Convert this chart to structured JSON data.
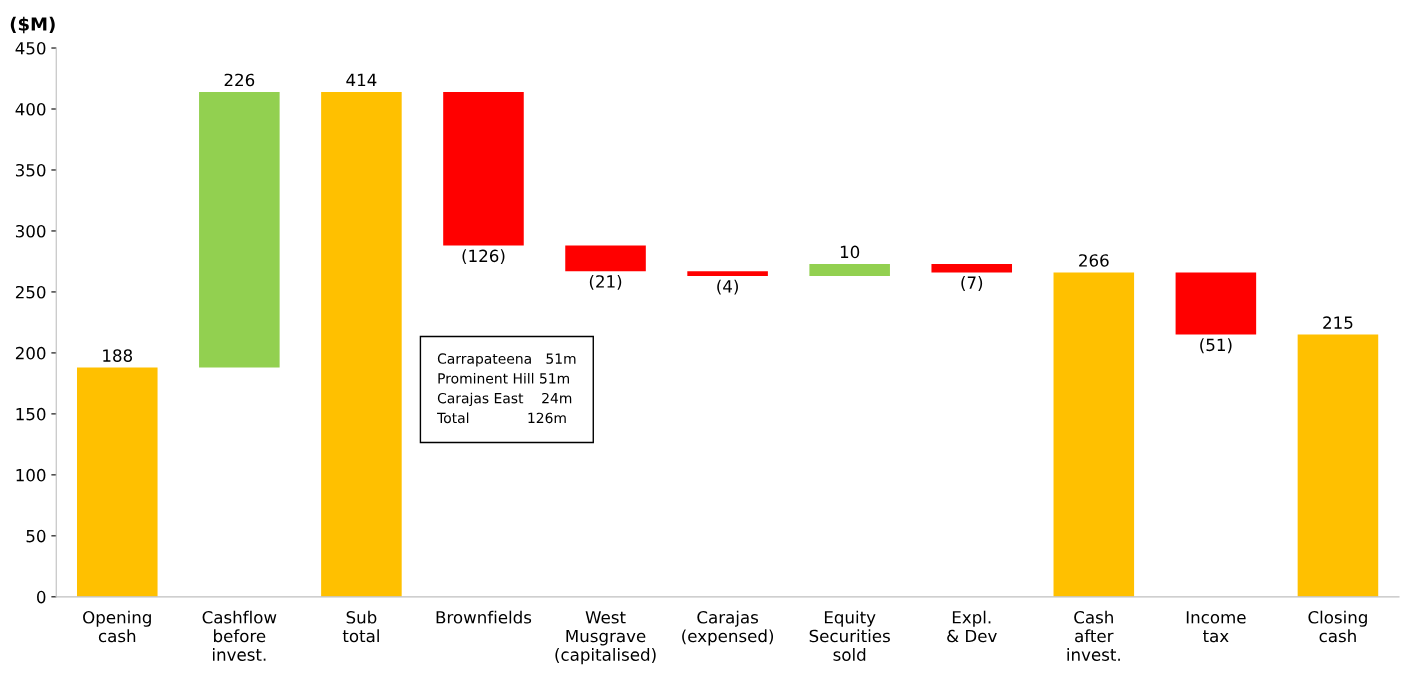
{
  "chart_data": {
    "type": "bar",
    "ylabel": "($M)",
    "categories": [
      "Opening\ncash",
      "Cashflow\nbefore\ninvest.",
      "Sub\ntotal",
      "Brownfields",
      "West\nMusgrave\n(capitalised)",
      "Carajas\n(expensed)",
      "Equity\nSecurities\nsold",
      "Expl.\n& Dev",
      "Cash\nafter\ninvest.",
      "Income\ntax",
      "Closing\ncash"
    ],
    "values": [
      188,
      226,
      414,
      -126,
      -21,
      -4,
      10,
      -7,
      266,
      -51,
      215
    ],
    "base": [
      0,
      188,
      0,
      414,
      288,
      267,
      263,
      273,
      0,
      266,
      0
    ],
    "colors": [
      "#ffc000",
      "#92d050",
      "#ffc000",
      "#ff0000",
      "#ff0000",
      "#ff0000",
      "#92d050",
      "#ff0000",
      "#ffc000",
      "#ff0000",
      "#ffc000"
    ],
    "value_labels": [
      "188",
      "226",
      "414",
      "(126)",
      "(21)",
      "(4)",
      "10",
      "(7)",
      "266",
      "(51)",
      "215"
    ],
    "annotations": [
      "Carrapateena   51m\nProminent Hill 51m\nCarajas East    24m\nTotal             126m"
    ],
    "ylim": [
      0,
      450
    ],
    "yticks": [
      0,
      50,
      100,
      150,
      200,
      250,
      300,
      350,
      400,
      450
    ],
    "grid": false,
    "legend": false
  }
}
